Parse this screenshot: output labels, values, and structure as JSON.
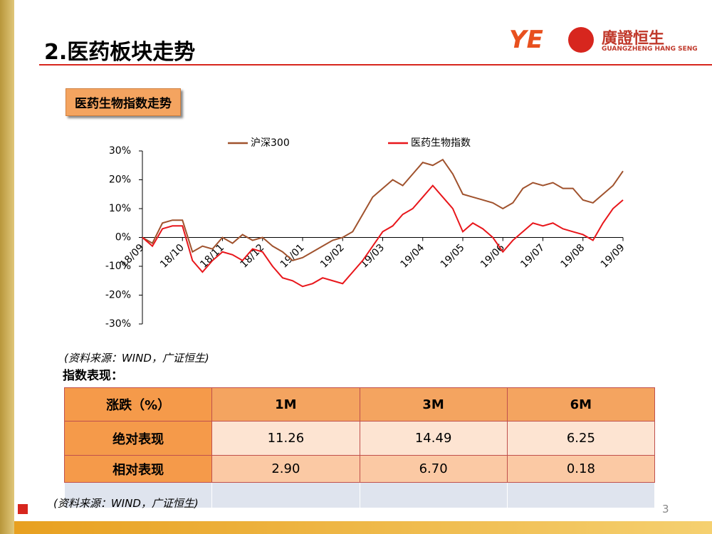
{
  "header": {
    "title": "2.医药板块走势",
    "logo_text": "廣證恒生",
    "logo_sub": "GUANGZHENG HANG SENG"
  },
  "section_label": "医药生物指数走势",
  "chart_data": {
    "type": "line",
    "categories": [
      "18/09",
      null,
      null,
      null,
      "18/10",
      null,
      null,
      null,
      "18/11",
      null,
      null,
      null,
      "18/12",
      null,
      null,
      null,
      "19/01",
      null,
      null,
      null,
      "19/02",
      null,
      null,
      null,
      "19/03",
      null,
      null,
      null,
      "19/04",
      null,
      null,
      null,
      "19/05",
      null,
      null,
      null,
      "19/06",
      null,
      null,
      null,
      "19/07",
      null,
      null,
      null,
      "19/08",
      null,
      null,
      null,
      "19/09"
    ],
    "series": [
      {
        "name": "沪深300",
        "color": "#a0522d",
        "values": [
          0,
          -2,
          5,
          6,
          6,
          -5,
          -3,
          -4,
          0,
          -2,
          1,
          -1,
          0,
          -3,
          -5,
          -8,
          -7,
          -5,
          -3,
          -1,
          0,
          2,
          8,
          14,
          17,
          20,
          18,
          22,
          26,
          25,
          27,
          22,
          15,
          14,
          13,
          12,
          10,
          12,
          17,
          19,
          18,
          19,
          17,
          17,
          13,
          12,
          15,
          18,
          23
        ]
      },
      {
        "name": "医药生物指数",
        "color": "#e8161b",
        "values": [
          0,
          -3,
          3,
          4,
          4,
          -8,
          -12,
          -8,
          -5,
          -6,
          -8,
          -4,
          -5,
          -10,
          -14,
          -15,
          -17,
          -16,
          -14,
          -15,
          -16,
          -12,
          -8,
          -3,
          2,
          4,
          8,
          10,
          14,
          18,
          14,
          10,
          2,
          5,
          3,
          0,
          -5,
          -1,
          2,
          5,
          4,
          5,
          3,
          2,
          1,
          -1,
          5,
          10,
          13
        ]
      }
    ],
    "ylim": [
      -30,
      30
    ],
    "yticks": [
      {
        "value": -30,
        "label": "-30%"
      },
      {
        "value": -20,
        "label": "-20%"
      },
      {
        "value": -10,
        "label": "-10%"
      },
      {
        "value": 0,
        "label": "0%"
      },
      {
        "value": 10,
        "label": "10%"
      },
      {
        "value": 20,
        "label": "20%"
      },
      {
        "value": 30,
        "label": "30%"
      }
    ]
  },
  "chart_source": "(资料来源：WIND，广证恒生)",
  "table_title": "指数表现：",
  "table": {
    "header": [
      "涨跌（%）",
      "1M",
      "3M",
      "6M"
    ],
    "rows": [
      [
        "绝对表现",
        "11.26",
        "14.49",
        "6.25"
      ],
      [
        "相对表现",
        "2.90",
        "6.70",
        "0.18"
      ]
    ]
  },
  "table_source": "(资料来源：WIND，广证恒生)",
  "page_number": "3"
}
